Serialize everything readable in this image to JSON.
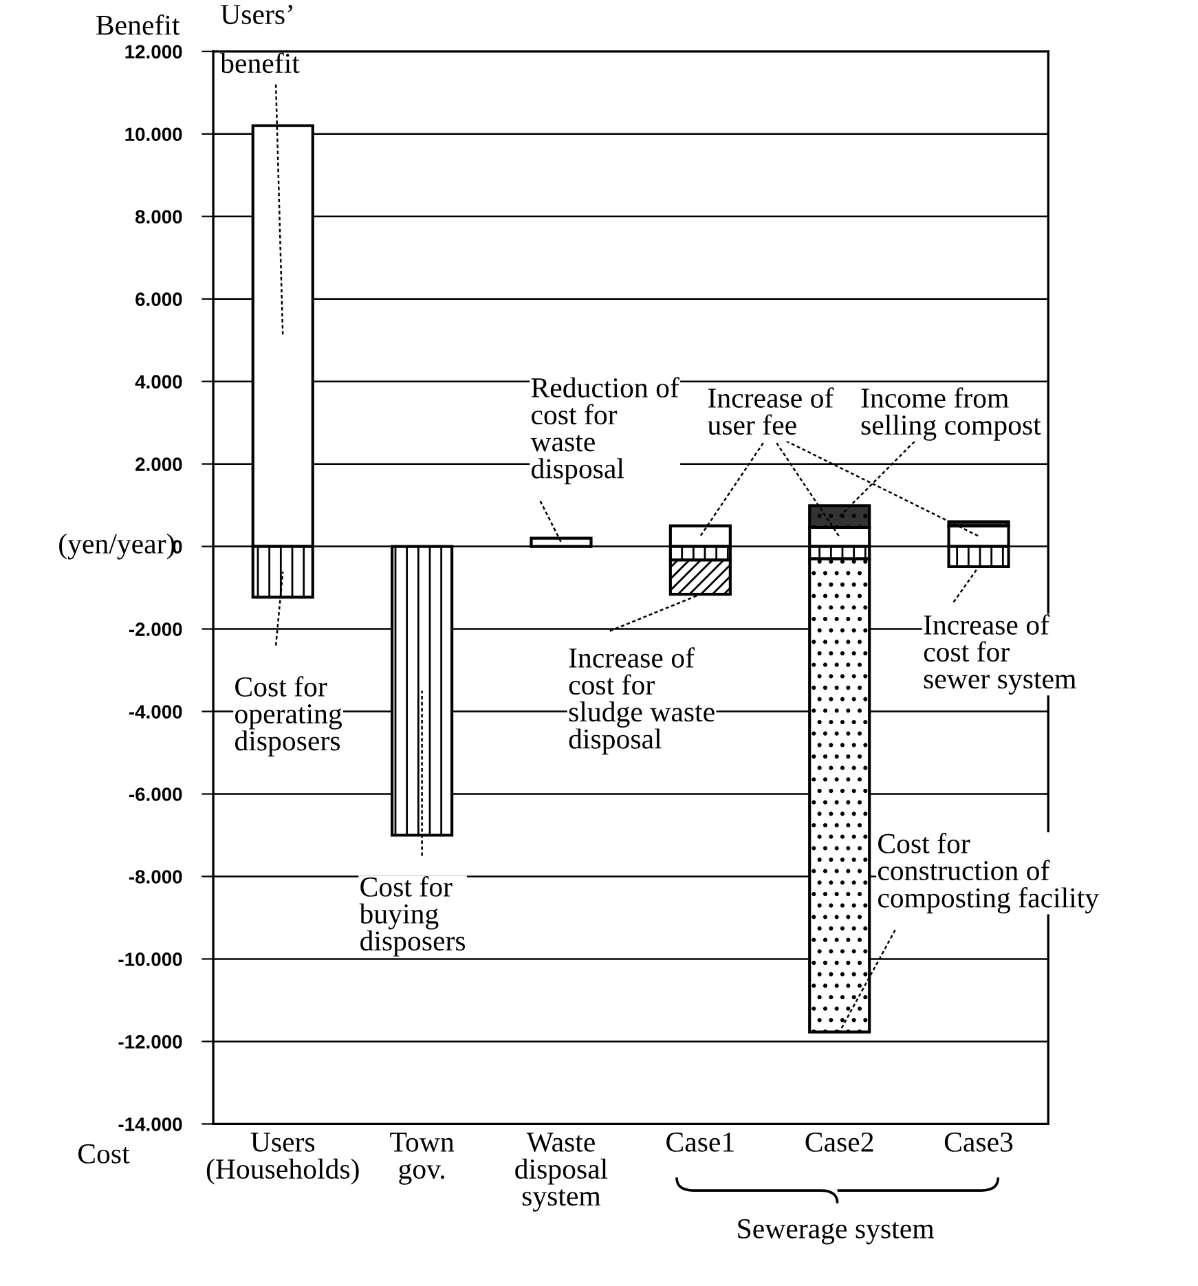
{
  "chart_data": {
    "type": "bar",
    "stacked": true,
    "categories": [
      "Users\n(Households)",
      "Town\ngov.",
      "Waste\ndisposal\nsystem",
      "Case1",
      "Case2",
      "Case3"
    ],
    "ylabel": "(yen/year)",
    "series": [
      {
        "name": "Users’\nbenefit",
        "color": "#ffffff",
        "values": [
          10200,
          null,
          null,
          null,
          null,
          null
        ]
      },
      {
        "name": "Reduction of\ncost for\nwaste\ndisposal",
        "color": "#ffffff",
        "values": [
          null,
          null,
          200,
          null,
          null,
          null
        ]
      },
      {
        "name": "Increase of\nuser fee",
        "color": "#ffffff",
        "values": [
          null,
          null,
          null,
          500,
          460,
          500
        ]
      },
      {
        "name": "Income from\nselling compost",
        "color": "#000000",
        "values": [
          null,
          null,
          null,
          null,
          530,
          100
        ]
      },
      {
        "name": "Cost for\noperating\ndisposers",
        "color": "#000000",
        "values": [
          -1230,
          null,
          null,
          null,
          null,
          null
        ]
      },
      {
        "name": "Cost for\nbuying\ndisposers",
        "color": "#000000",
        "values": [
          null,
          -7000,
          null,
          null,
          null,
          null
        ]
      },
      {
        "color": "#000000",
        "values": [
          null,
          null,
          null,
          -330,
          -300,
          -490
        ]
      },
      {
        "color": "#000000",
        "values": [
          null,
          null,
          null,
          -830,
          null,
          null
        ]
      },
      {
        "color": "#000000",
        "values": [
          null,
          null,
          null,
          null,
          -11470,
          null
        ]
      }
    ],
    "ylim": [
      -14000,
      12000
    ],
    "yticks": [
      {
        "value": 12000,
        "label": "12.000"
      },
      {
        "value": 10000,
        "label": "10.000"
      },
      {
        "value": 8000,
        "label": "8.000"
      },
      {
        "value": 6000,
        "label": "6.000"
      },
      {
        "value": 4000,
        "label": "4.000"
      },
      {
        "value": 2000,
        "label": "2.000"
      },
      0,
      {
        "value": -2000,
        "label": "-2.000"
      },
      {
        "value": -4000,
        "label": "-4.000"
      },
      {
        "value": -6000,
        "label": "-6.000"
      },
      {
        "value": -8000,
        "label": "-8.000"
      },
      {
        "value": -10000,
        "label": "-10.000"
      },
      {
        "value": -12000,
        "label": "-12.000"
      },
      {
        "value": -14000,
        "label": "-14.000"
      }
    ],
    "grid": "y",
    "legend": false,
    "annotations": [
      "Benefit",
      "Cost",
      "Sewerage system",
      {
        "text": "Increase of\ncost for\nsewer system",
        "x": "Case3",
        "y": -490
      },
      {
        "text": "Increase of\ncost for\nsludge waste\ndisposal",
        "x": "Case1",
        "y": -1160
      },
      {
        "text": "Cost for\nconstruction of\ncomposting facility",
        "x": "Case2",
        "y": -11770
      }
    ]
  }
}
